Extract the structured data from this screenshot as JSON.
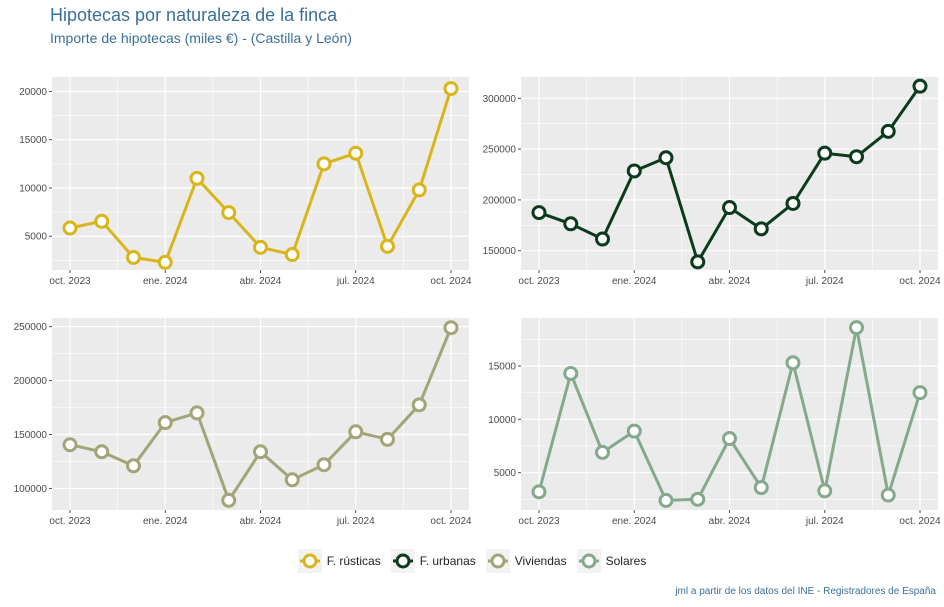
{
  "title": "Hipotecas por naturaleza de la finca",
  "subtitle": "Importe de hipotecas (miles €) - (Castilla y León)",
  "caption": "jml a partir de los datos del INE - Registradores de España",
  "months": [
    "oct. 2023",
    "nov. 2023",
    "dic. 2023",
    "ene. 2024",
    "feb. 2024",
    "mar. 2024",
    "abr. 2024",
    "may. 2024",
    "jun. 2024",
    "jul. 2024",
    "ago. 2024",
    "sep. 2024",
    "oct. 2024"
  ],
  "chart_data": [
    {
      "type": "line",
      "series_name": "F. rústicas",
      "color": "#d9b51c",
      "x": [
        "oct. 2023",
        "nov. 2023",
        "dic. 2023",
        "ene. 2024",
        "feb. 2024",
        "mar. 2024",
        "abr. 2024",
        "may. 2024",
        "jun. 2024",
        "jul. 2024",
        "ago. 2024",
        "sep. 2024",
        "oct. 2024"
      ],
      "values": [
        5850,
        6550,
        2800,
        2300,
        11000,
        7450,
        3850,
        3100,
        12500,
        13600,
        3950,
        9800,
        20300
      ],
      "ylim": [
        1500,
        21500
      ],
      "y_ticks": [
        5000,
        10000,
        15000,
        20000
      ],
      "x_ticks": [
        "oct. 2023",
        "ene. 2024",
        "abr. 2024",
        "jul. 2024",
        "oct. 2024"
      ]
    },
    {
      "type": "line",
      "series_name": "F. urbanas",
      "color": "#0a3b1c",
      "x": [
        "oct. 2023",
        "nov. 2023",
        "dic. 2023",
        "ene. 2024",
        "feb. 2024",
        "mar. 2024",
        "abr. 2024",
        "may. 2024",
        "jun. 2024",
        "jul. 2024",
        "ago. 2024",
        "sep. 2024",
        "oct. 2024"
      ],
      "values": [
        187500,
        176500,
        161500,
        228500,
        241500,
        139000,
        192500,
        171500,
        196500,
        246000,
        242500,
        267500,
        312000
      ],
      "ylim": [
        131000,
        321000
      ],
      "y_ticks": [
        150000,
        200000,
        250000,
        300000
      ],
      "x_ticks": [
        "oct. 2023",
        "ene. 2024",
        "abr. 2024",
        "jul. 2024",
        "oct. 2024"
      ]
    },
    {
      "type": "line",
      "series_name": "Viviendas",
      "color": "#a3a477",
      "x": [
        "oct. 2023",
        "nov. 2023",
        "dic. 2023",
        "ene. 2024",
        "feb. 2024",
        "mar. 2024",
        "abr. 2024",
        "may. 2024",
        "jun. 2024",
        "jul. 2024",
        "ago. 2024",
        "sep. 2024",
        "oct. 2024"
      ],
      "values": [
        140500,
        134000,
        121000,
        161000,
        170000,
        89000,
        134000,
        108000,
        122000,
        152500,
        145500,
        177500,
        249000
      ],
      "ylim": [
        80000,
        258000
      ],
      "y_ticks": [
        100000,
        150000,
        200000,
        250000
      ],
      "x_ticks": [
        "oct. 2023",
        "ene. 2024",
        "abr. 2024",
        "jul. 2024",
        "oct. 2024"
      ]
    },
    {
      "type": "line",
      "series_name": "Solares",
      "color": "#84a98c",
      "x": [
        "oct. 2023",
        "nov. 2023",
        "dic. 2023",
        "ene. 2024",
        "feb. 2024",
        "mar. 2024",
        "abr. 2024",
        "may. 2024",
        "jun. 2024",
        "jul. 2024",
        "ago. 2024",
        "sep. 2024",
        "oct. 2024"
      ],
      "values": [
        3200,
        14300,
        6900,
        8900,
        2400,
        2500,
        8200,
        3600,
        15300,
        3300,
        18600,
        2900,
        12500
      ],
      "ylim": [
        1500,
        19500
      ],
      "y_ticks": [
        5000,
        10000,
        15000
      ],
      "x_ticks": [
        "oct. 2023",
        "ene. 2024",
        "abr. 2024",
        "jul. 2024",
        "oct. 2024"
      ]
    }
  ],
  "legend": [
    {
      "label": "F. rústicas",
      "color": "#d9b51c"
    },
    {
      "label": "F. urbanas",
      "color": "#0a3b1c"
    },
    {
      "label": "Viviendas",
      "color": "#a3a477"
    },
    {
      "label": "Solares",
      "color": "#84a98c"
    }
  ]
}
